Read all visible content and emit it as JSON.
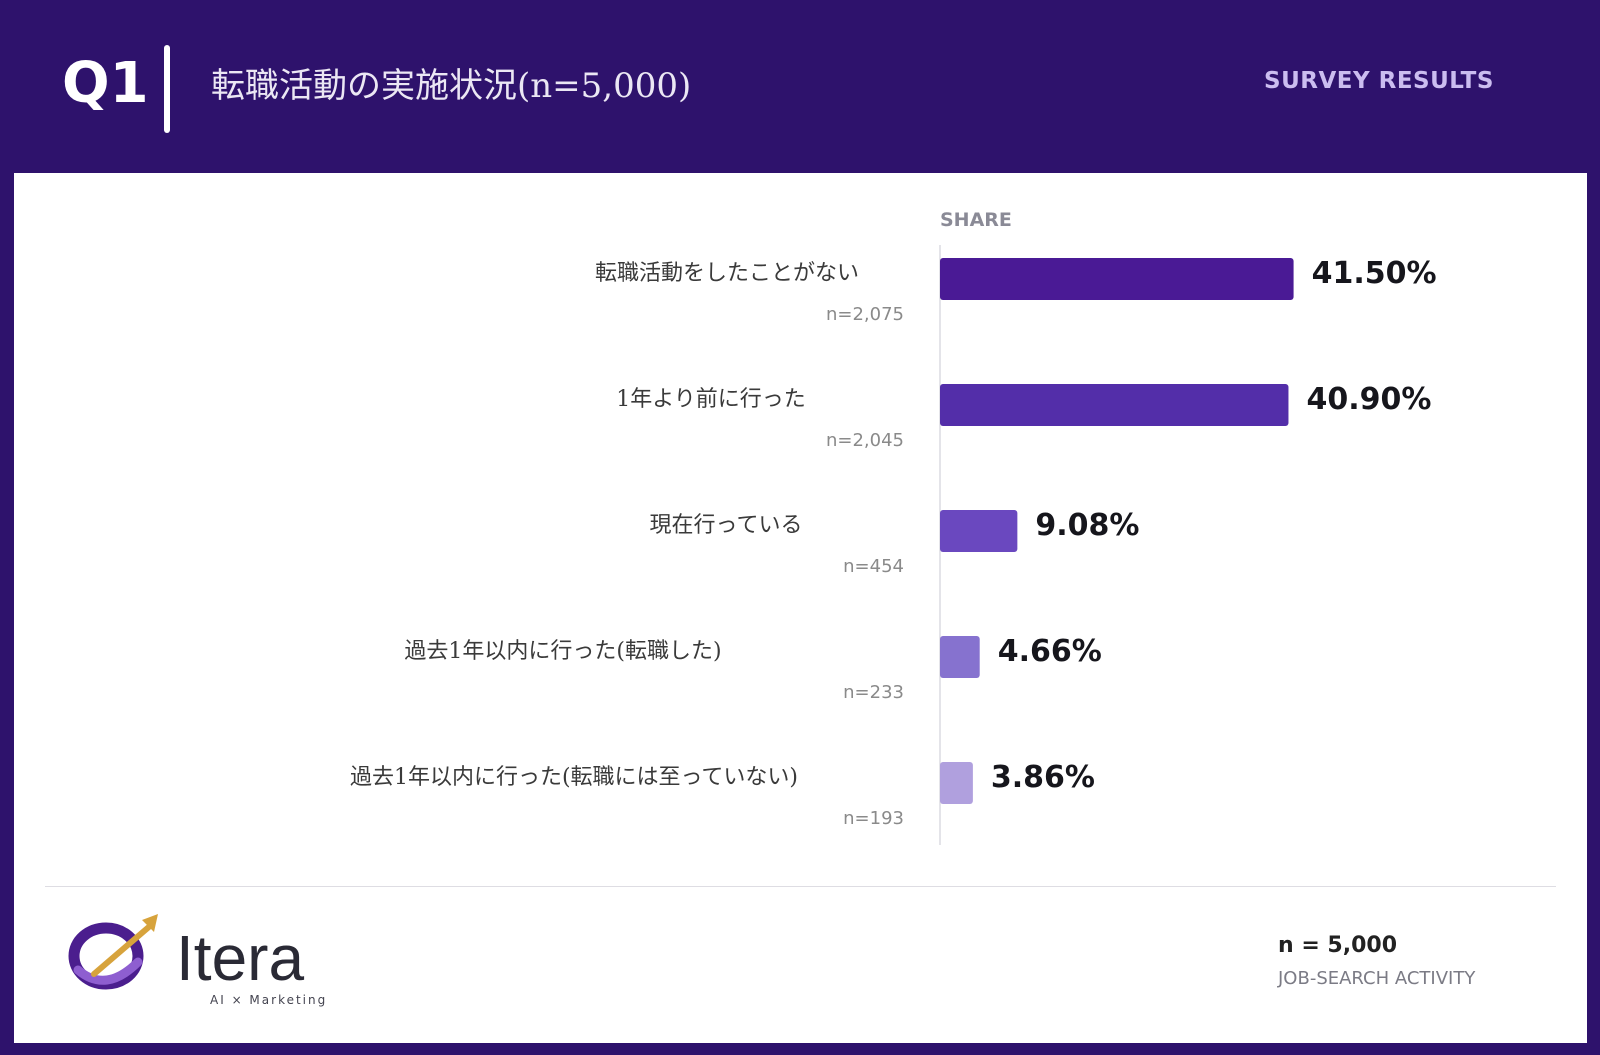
{
  "header": {
    "question": "Q1",
    "title": "転職活動の実施状況(n=5,000)",
    "badge": "SURVEY RESULTS"
  },
  "chart_data": {
    "type": "bar",
    "orientation": "horizontal",
    "column_header": "SHARE",
    "categories": [
      "転職活動をしたことがない",
      "1年より前に行った",
      "現在行っている",
      "過去1年以内に行った(転職した)",
      "過去1年以内に行った(転職には至っていない)"
    ],
    "values": [
      41.5,
      40.9,
      9.08,
      4.66,
      3.86
    ],
    "value_labels": [
      "41.50%",
      "40.90%",
      "9.08%",
      "4.66%",
      "3.86%"
    ],
    "counts": [
      "n=2,075",
      "n=2,045",
      "n=454",
      "n=233",
      "n=193"
    ],
    "colors": [
      "#4a1a95",
      "#532ea9",
      "#6a48bf",
      "#8672cf",
      "#b0a0de"
    ],
    "xlim": [
      0,
      100
    ],
    "grid": false,
    "legend": "none"
  },
  "footer": {
    "brand": "Itera",
    "brand_tagline": "AI × Marketing",
    "n_label": "n = 5,000",
    "subtitle": "JOB-SEARCH ACTIVITY"
  }
}
